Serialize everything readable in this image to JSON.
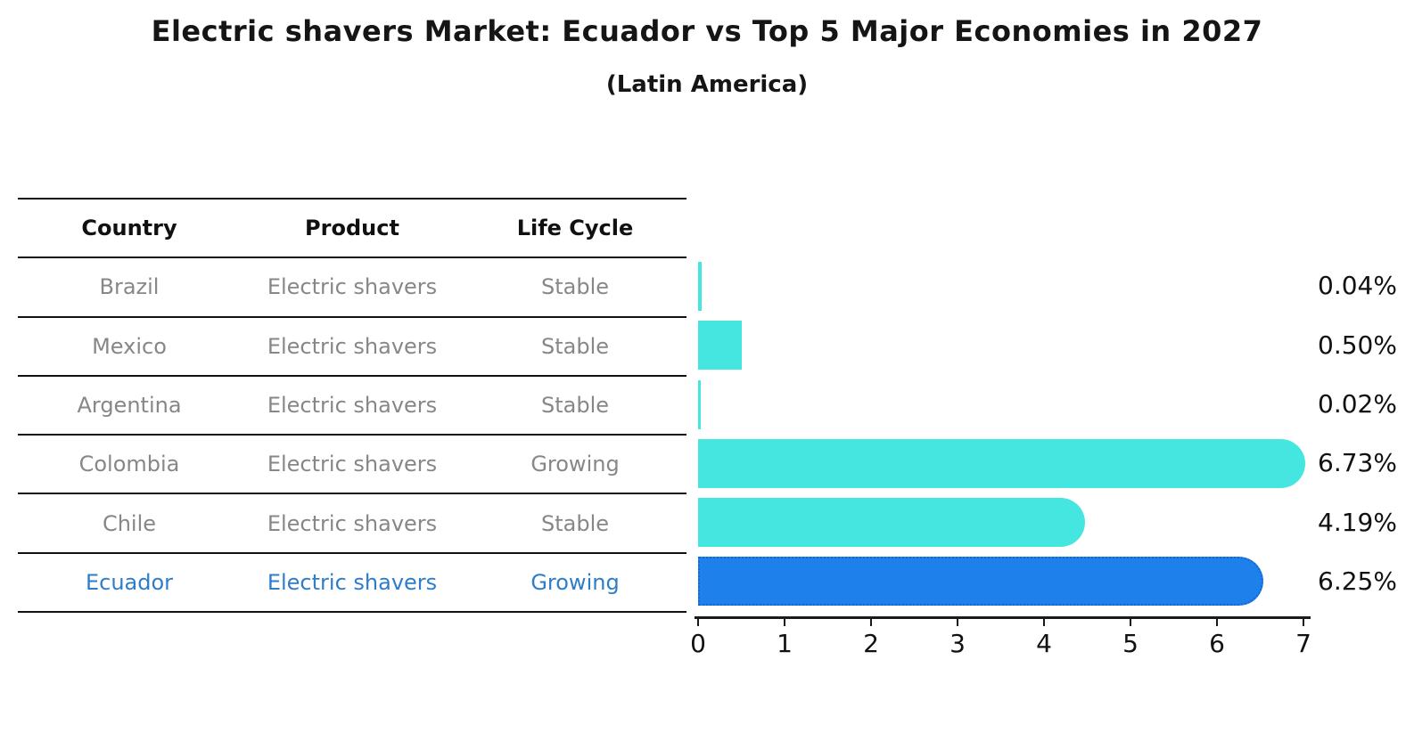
{
  "title": "Electric shavers Market: Ecuador vs Top 5 Major Economies in 2027",
  "subtitle": "(Latin America)",
  "table": {
    "headers": {
      "country": "Country",
      "product": "Product",
      "life_cycle": "Life Cycle"
    },
    "rows": [
      {
        "country": "Brazil",
        "product": "Electric shavers",
        "life_cycle": "Stable"
      },
      {
        "country": "Mexico",
        "product": "Electric shavers",
        "life_cycle": "Stable"
      },
      {
        "country": "Argentina",
        "product": "Electric shavers",
        "life_cycle": "Stable"
      },
      {
        "country": "Colombia",
        "product": "Electric shavers",
        "life_cycle": "Growing"
      },
      {
        "country": "Chile",
        "product": "Electric shavers",
        "life_cycle": "Stable"
      },
      {
        "country": "Ecuador",
        "product": "Electric shavers",
        "life_cycle": "Growing"
      }
    ],
    "highlighted_row": "Ecuador"
  },
  "chart_data": {
    "type": "bar",
    "orientation": "horizontal",
    "title": "Electric shavers Market: Ecuador vs Top 5 Major Economies in 2027 (Latin America)",
    "categories": [
      "Brazil",
      "Mexico",
      "Argentina",
      "Colombia",
      "Chile",
      "Ecuador"
    ],
    "values": [
      0.04,
      0.5,
      0.02,
      6.73,
      4.19,
      6.25
    ],
    "value_labels": [
      "0.04%",
      "0.50%",
      "0.02%",
      "6.73%",
      "4.19%",
      "6.25%"
    ],
    "xlim": [
      0,
      7
    ],
    "x_ticks": [
      "0",
      "1",
      "2",
      "3",
      "4",
      "5",
      "6",
      "7"
    ],
    "grid": false,
    "legend": false,
    "highlight_index": 5,
    "colors": {
      "bar": "#45E6E0",
      "highlight_bar": "#1E80EA",
      "highlight_border": "#1566D0",
      "highlight_text": "#2E7DC9",
      "table_text": "#878787",
      "axis": "#1a1a1a",
      "label": "#111111"
    }
  }
}
